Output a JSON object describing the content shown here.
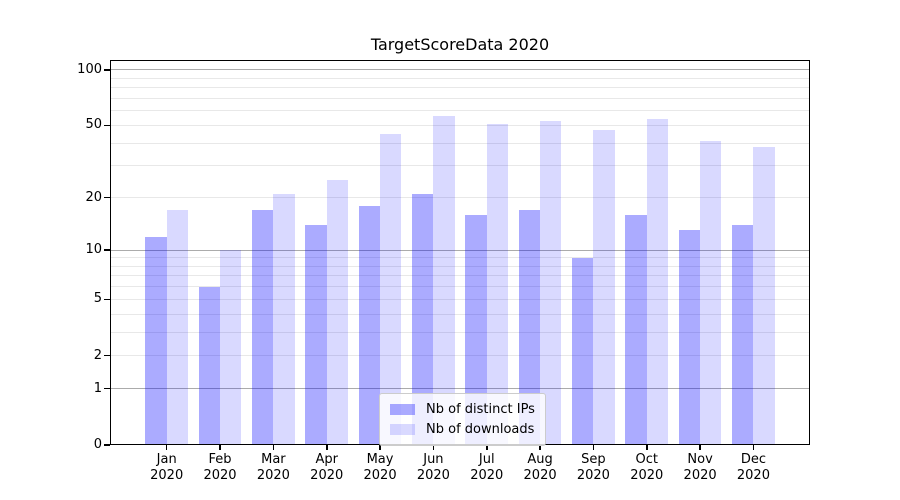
{
  "chart_data": {
    "type": "bar",
    "title": "TargetScoreData 2020",
    "categories": [
      "Jan",
      "Feb",
      "Mar",
      "Apr",
      "May",
      "Jun",
      "Jul",
      "Aug",
      "Sep",
      "Oct",
      "Nov",
      "Dec"
    ],
    "x_tick_line2": "2020",
    "series": [
      {
        "name": "Nb of distinct IPs",
        "color": "rgba(0,0,255,0.33)",
        "color_on_white": "#ababff",
        "values": [
          12,
          6,
          17,
          14,
          18,
          21,
          16,
          17,
          9,
          16,
          13,
          14
        ]
      },
      {
        "name": "Nb of downloads",
        "color": "rgba(0,0,255,0.15)",
        "color_on_white": "#d9d9ff",
        "values": [
          17,
          10,
          21,
          25,
          45,
          56,
          51,
          53,
          47,
          54,
          41,
          38
        ]
      }
    ],
    "yscale": "log1p",
    "ylim": [
      0,
      113
    ],
    "yticks": [
      0,
      1,
      2,
      5,
      10,
      20,
      50,
      100
    ],
    "gridlines_major": [
      1,
      10,
      100
    ],
    "gridlines_minor": [
      2,
      3,
      4,
      5,
      6,
      7,
      8,
      9,
      20,
      30,
      40,
      50,
      60,
      70,
      80,
      90
    ],
    "grid": true,
    "legend_position": "lower center",
    "colors": {
      "grid_major": "#ababab",
      "grid_minor": "#e8e8e8",
      "spine": "#000000",
      "tick": "#000000",
      "text": "#000000",
      "background": "#ffffff"
    }
  }
}
